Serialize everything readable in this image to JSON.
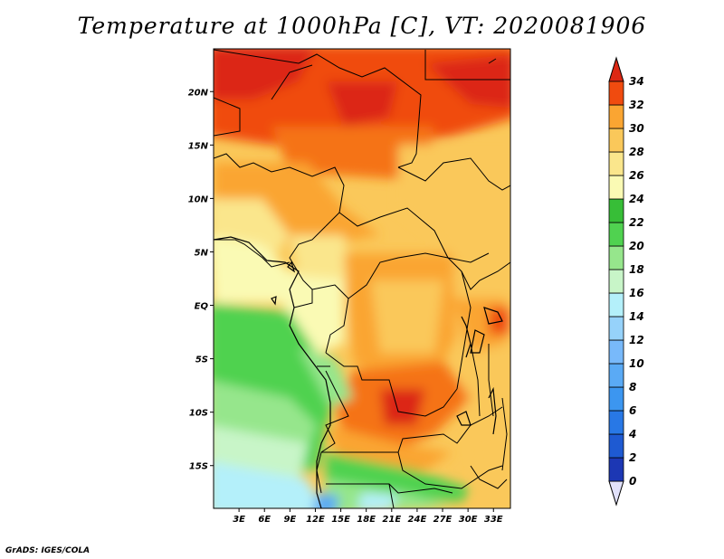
{
  "title": "Temperature at 1000hPa [C], VT: 2020081906",
  "credit": "GrADS: IGES/COLA",
  "map": {
    "lat_ticks": [
      {
        "lat": 20,
        "label": "20N"
      },
      {
        "lat": 15,
        "label": "15N"
      },
      {
        "lat": 10,
        "label": "10N"
      },
      {
        "lat": 5,
        "label": "5N"
      },
      {
        "lat": 0,
        "label": "EQ"
      },
      {
        "lat": -5,
        "label": "5S"
      },
      {
        "lat": -10,
        "label": "10S"
      },
      {
        "lat": -15,
        "label": "15S"
      }
    ],
    "lon_ticks": [
      {
        "lon": 3,
        "label": "3E"
      },
      {
        "lon": 6,
        "label": "6E"
      },
      {
        "lon": 9,
        "label": "9E"
      },
      {
        "lon": 12,
        "label": "12E"
      },
      {
        "lon": 15,
        "label": "15E"
      },
      {
        "lon": 18,
        "label": "18E"
      },
      {
        "lon": 21,
        "label": "21E"
      },
      {
        "lon": 24,
        "label": "24E"
      },
      {
        "lon": 27,
        "label": "27E"
      },
      {
        "lon": 30,
        "label": "30E"
      },
      {
        "lon": 33,
        "label": "33E"
      }
    ],
    "lon_range": [
      0,
      35
    ],
    "lat_range": [
      -19,
      24
    ]
  },
  "colorbar": {
    "levels": [
      {
        "label": "0",
        "color": "#1e1e6e"
      },
      {
        "label": "2",
        "color": "#1c37b4"
      },
      {
        "label": "4",
        "color": "#1e5ad2"
      },
      {
        "label": "6",
        "color": "#2878e6"
      },
      {
        "label": "8",
        "color": "#3c96f0"
      },
      {
        "label": "10",
        "color": "#5aaaf5"
      },
      {
        "label": "12",
        "color": "#78b9fa"
      },
      {
        "label": "14",
        "color": "#96d2fa"
      },
      {
        "label": "16",
        "color": "#b4f0fa"
      },
      {
        "label": "18",
        "color": "#c8f5c8"
      },
      {
        "label": "20",
        "color": "#96e68c"
      },
      {
        "label": "22",
        "color": "#50d250"
      },
      {
        "label": "24",
        "color": "#37be37"
      },
      {
        "label": "26",
        "color": "#fafab4"
      },
      {
        "label": "28",
        "color": "#fae68c"
      },
      {
        "label": "30",
        "color": "#fac85a"
      },
      {
        "label": "32",
        "color": "#faa532"
      },
      {
        "label": "34",
        "color": "#f57314"
      }
    ],
    "under_color": "#e1e1fa",
    "over_color": "#dc2814",
    "fill_top": "#f04b0f"
  }
}
